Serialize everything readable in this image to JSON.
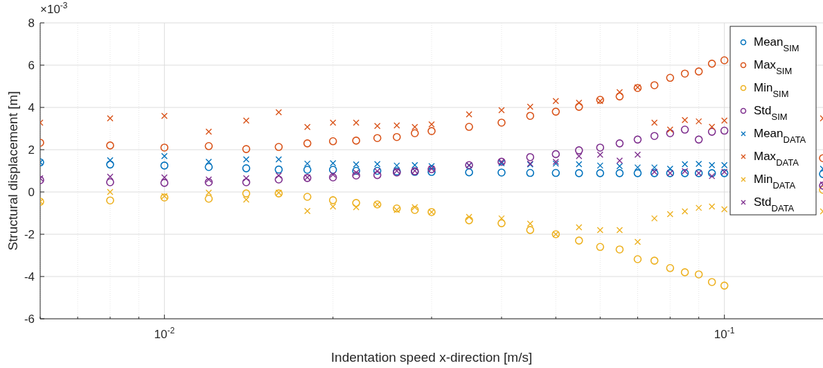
{
  "chart_data": {
    "type": "scatter",
    "xlabel": "Indentation speed x-direction [m/s]",
    "ylabel": "Structural displacement [m]",
    "annotations": [
      "×10$^{-3}$"
    ],
    "x": [
      0.006,
      0.008,
      0.01,
      0.012,
      0.014,
      0.016,
      0.018,
      0.02,
      0.022,
      0.024,
      0.026,
      0.028,
      0.03,
      0.035,
      0.04,
      0.045,
      0.05,
      0.055,
      0.06,
      0.065,
      0.07,
      0.075,
      0.08,
      0.085,
      0.09,
      0.095,
      0.1,
      0.15
    ],
    "log": "x",
    "xlim": [
      0.006,
      0.15
    ],
    "xticks": [
      {
        "value": 0.006,
        "label": null
      },
      {
        "value": 0.007,
        "label": null
      },
      {
        "value": 0.008,
        "label": null
      },
      {
        "value": 0.009,
        "label": null
      },
      {
        "value": 0.01,
        "label": "10$^{-2}$"
      },
      {
        "value": 0.02,
        "label": null
      },
      {
        "value": 0.03,
        "label": null
      },
      {
        "value": 0.04,
        "label": null
      },
      {
        "value": 0.05,
        "label": null
      },
      {
        "value": 0.06,
        "label": null
      },
      {
        "value": 0.07,
        "label": null
      },
      {
        "value": 0.08,
        "label": null
      },
      {
        "value": 0.09,
        "label": null
      },
      {
        "value": 0.1,
        "label": "10$^{-1}$"
      }
    ],
    "ylim": [
      -6,
      8
    ],
    "yticks": [
      -6,
      -4,
      -2,
      0,
      2,
      4,
      6,
      8
    ],
    "grid": true,
    "legend": "top right",
    "series": [
      {
        "name": "Mean$_{SIM}$",
        "color": "#0072bd",
        "marker": "circle",
        "values": [
          1.4,
          1.3,
          1.25,
          1.18,
          1.12,
          1.06,
          1.05,
          1.05,
          1.0,
          1.0,
          0.97,
          0.95,
          0.95,
          0.93,
          0.92,
          0.9,
          0.9,
          0.89,
          0.89,
          0.89,
          0.89,
          0.89,
          0.89,
          0.89,
          0.89,
          0.89,
          0.89,
          0.85
        ]
      },
      {
        "name": "Max$_{SIM}$",
        "color": "#d95319",
        "marker": "circle",
        "values": [
          2.33,
          2.2,
          2.1,
          2.17,
          2.03,
          2.13,
          2.3,
          2.4,
          2.43,
          2.55,
          2.6,
          2.78,
          2.88,
          3.08,
          3.28,
          3.6,
          3.8,
          4.03,
          4.36,
          4.52,
          4.92,
          5.05,
          5.4,
          5.6,
          5.7,
          6.07,
          6.23,
          1.6
        ]
      },
      {
        "name": "Min$_{SIM}$",
        "color": "#edb120",
        "marker": "circle",
        "values": [
          -0.46,
          -0.4,
          -0.26,
          -0.32,
          -0.07,
          -0.07,
          -0.23,
          -0.39,
          -0.52,
          -0.59,
          -0.78,
          -0.85,
          -0.95,
          -1.34,
          -1.48,
          -1.8,
          -2.0,
          -2.3,
          -2.6,
          -2.72,
          -3.18,
          -3.25,
          -3.6,
          -3.8,
          -3.9,
          -4.26,
          -4.43,
          0.1
        ]
      },
      {
        "name": "Std$_{SIM}$",
        "color": "#7e2f8e",
        "marker": "circle",
        "values": [
          0.56,
          0.46,
          0.43,
          0.46,
          0.46,
          0.59,
          0.66,
          0.69,
          0.78,
          0.8,
          0.92,
          0.98,
          1.08,
          1.27,
          1.43,
          1.65,
          1.79,
          1.97,
          2.1,
          2.3,
          2.48,
          2.65,
          2.78,
          2.95,
          2.48,
          2.85,
          2.9,
          0.3
        ]
      },
      {
        "name": "Mean$_{DATA}$",
        "color": "#0072bd",
        "marker": "cross",
        "values": [
          1.4,
          1.5,
          1.7,
          1.43,
          1.54,
          1.54,
          1.34,
          1.36,
          1.3,
          1.32,
          1.25,
          1.27,
          1.22,
          1.25,
          1.36,
          1.3,
          1.34,
          1.31,
          1.25,
          1.22,
          1.16,
          1.16,
          1.1,
          1.31,
          1.33,
          1.27,
          1.27,
          1.1
        ]
      },
      {
        "name": "Max$_{DATA}$",
        "color": "#d95319",
        "marker": "cross",
        "values": [
          3.28,
          3.48,
          3.6,
          2.85,
          3.38,
          3.77,
          3.07,
          3.28,
          3.28,
          3.12,
          3.15,
          3.07,
          3.2,
          3.67,
          3.87,
          4.03,
          4.3,
          4.22,
          4.3,
          4.72,
          4.95,
          3.28,
          2.95,
          3.4,
          3.34,
          3.08,
          3.38,
          3.48
        ]
      },
      {
        "name": "Min$_{DATA}$",
        "color": "#edb120",
        "marker": "cross",
        "values": [
          -0.46,
          0.0,
          -0.2,
          -0.03,
          -0.36,
          -0.03,
          -0.9,
          -0.69,
          -0.72,
          -0.59,
          -0.85,
          -0.72,
          -0.95,
          -1.18,
          -1.25,
          -1.5,
          -2.0,
          -1.67,
          -1.8,
          -1.8,
          -2.36,
          -1.25,
          -1.05,
          -0.92,
          -0.75,
          -0.69,
          -0.82,
          -0.92
        ]
      },
      {
        "name": "Std$_{DATA}$",
        "color": "#7e2f8e",
        "marker": "cross",
        "values": [
          0.65,
          0.72,
          0.69,
          0.59,
          0.65,
          0.78,
          0.69,
          0.82,
          0.92,
          0.98,
          1.0,
          1.0,
          1.1,
          1.27,
          1.43,
          1.34,
          1.43,
          1.7,
          1.76,
          1.48,
          1.76,
          0.95,
          0.89,
          0.98,
          0.89,
          0.75,
          0.95,
          0.35
        ]
      }
    ]
  }
}
